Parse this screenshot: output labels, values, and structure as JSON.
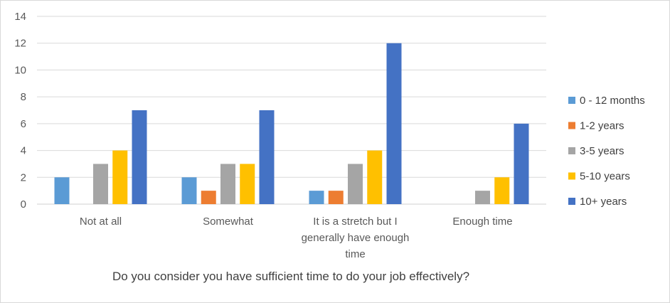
{
  "chart_data": {
    "type": "bar",
    "title": "",
    "xlabel": "Do you consider you have sufficient time to do your job effectively?",
    "ylabel": "",
    "ylim": [
      0,
      14
    ],
    "yticks": [
      0,
      2,
      4,
      6,
      8,
      10,
      12,
      14
    ],
    "grid": true,
    "legend_position": "right",
    "categories": [
      [
        "Not at all"
      ],
      [
        "Somewhat"
      ],
      [
        "It is a stretch but I",
        "generally have enough",
        "time"
      ],
      [
        "Enough time"
      ]
    ],
    "series": [
      {
        "name": "0 - 12 months",
        "color": "#5b9bd5",
        "values": [
          2,
          2,
          1,
          0
        ]
      },
      {
        "name": "1-2 years",
        "color": "#ed7d31",
        "values": [
          0,
          1,
          1,
          0
        ]
      },
      {
        "name": "3-5 years",
        "color": "#a5a5a5",
        "values": [
          3,
          3,
          3,
          1
        ]
      },
      {
        "name": "5-10 years",
        "color": "#ffc000",
        "values": [
          4,
          3,
          4,
          2
        ]
      },
      {
        "name": "10+ years",
        "color": "#4472c4",
        "values": [
          7,
          7,
          12,
          6
        ]
      }
    ]
  }
}
